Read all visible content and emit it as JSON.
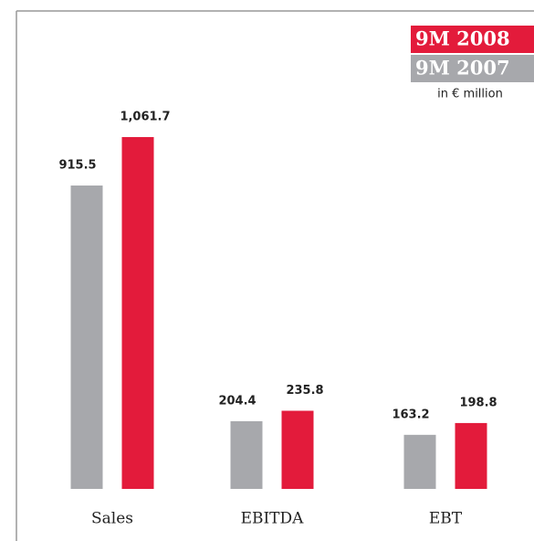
{
  "chart_data": {
    "type": "bar",
    "unit_note": "in € million",
    "categories": [
      "Sales",
      "EBITDA",
      "EBT"
    ],
    "series": [
      {
        "name": "9M 2007",
        "color": "#a7a8ac",
        "values": [
          915.5,
          204.4,
          163.2
        ],
        "value_labels": [
          "915.5",
          "204.4",
          "163.2"
        ]
      },
      {
        "name": "9M 2008",
        "color": "#e31b3b",
        "values": [
          1061.7,
          235.8,
          198.8
        ],
        "value_labels": [
          "1,061.7",
          "235.8",
          "198.8"
        ]
      }
    ]
  }
}
